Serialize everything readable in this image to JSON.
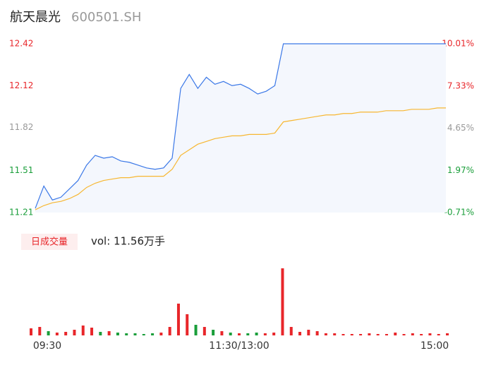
{
  "chart_data": [
    {
      "type": "line",
      "title": "航天晨光",
      "subtitle": "600501.SH",
      "series": [
        {
          "color": "#3b78e7",
          "values": [
            11.24,
            11.4,
            11.3,
            11.32,
            11.38,
            11.44,
            11.55,
            11.62,
            11.6,
            11.61,
            11.58,
            11.57,
            11.55,
            11.53,
            11.52,
            11.53,
            11.6,
            12.1,
            12.2,
            12.1,
            12.18,
            12.13,
            12.15,
            12.12,
            12.13,
            12.1,
            12.06,
            12.08,
            12.12,
            12.42,
            12.42,
            12.42,
            12.42,
            12.42,
            12.42,
            12.42,
            12.42,
            12.42,
            12.42,
            12.42,
            12.42,
            12.42,
            12.42,
            12.42,
            12.42,
            12.42,
            12.42,
            12.42,
            12.42
          ]
        },
        {
          "color": "#f7b731",
          "values": [
            11.23,
            11.26,
            11.28,
            11.29,
            11.31,
            11.34,
            11.39,
            11.42,
            11.44,
            11.45,
            11.46,
            11.46,
            11.47,
            11.47,
            11.47,
            11.47,
            11.52,
            11.62,
            11.66,
            11.7,
            11.72,
            11.74,
            11.75,
            11.76,
            11.76,
            11.77,
            11.77,
            11.77,
            11.78,
            11.86,
            11.87,
            11.88,
            11.89,
            11.9,
            11.91,
            11.91,
            11.92,
            11.92,
            11.93,
            11.93,
            11.93,
            11.94,
            11.94,
            11.94,
            11.95,
            11.95,
            11.95,
            11.96,
            11.96
          ]
        }
      ],
      "ylim": [
        11.21,
        12.42
      ],
      "yticks": [
        12.42,
        12.12,
        11.82,
        11.51,
        11.21
      ],
      "y2lim": [
        -0.71,
        10.01
      ],
      "y2ticks": [
        {
          "value": 10.01,
          "label": "10.01%"
        },
        {
          "value": 7.33,
          "label": "7.33%"
        },
        {
          "value": 4.65,
          "label": "4.65%"
        },
        {
          "value": 1.97,
          "label": "1.97%"
        },
        {
          "value": -0.71,
          "label": "-0.71%"
        }
      ],
      "tick_colors": [
        "#e8262a",
        "#e8262a",
        "#999999",
        "#1a9e3a",
        "#1a9e3a"
      ],
      "area_color": "#f4f7fd"
    },
    {
      "type": "bar",
      "legend": "日成交量",
      "annotation": "vol: 11.56万手",
      "up_color": "#e8262a",
      "down_color": "#1a9e3a",
      "categories": [
        "09:30",
        null,
        null,
        null,
        null,
        null,
        null,
        null,
        null,
        null,
        null,
        null,
        null,
        null,
        null,
        null,
        null,
        null,
        null,
        null,
        null,
        null,
        null,
        null,
        "11:30/13:00",
        null,
        null,
        null,
        null,
        null,
        null,
        null,
        null,
        null,
        null,
        null,
        null,
        null,
        null,
        null,
        null,
        null,
        null,
        null,
        null,
        null,
        null,
        null,
        "15:00"
      ],
      "values": [
        0.1,
        0.12,
        0.06,
        0.04,
        0.05,
        0.08,
        0.14,
        0.11,
        0.05,
        0.06,
        0.04,
        0.03,
        0.03,
        0.02,
        0.03,
        0.04,
        0.12,
        0.45,
        0.3,
        0.15,
        0.12,
        0.08,
        0.06,
        0.04,
        0.03,
        0.03,
        0.04,
        0.03,
        0.04,
        0.95,
        0.12,
        0.05,
        0.08,
        0.06,
        0.03,
        0.03,
        0.02,
        0.02,
        0.02,
        0.03,
        0.02,
        0.02,
        0.04,
        0.02,
        0.03,
        0.02,
        0.03,
        0.02,
        0.03
      ]
    }
  ]
}
